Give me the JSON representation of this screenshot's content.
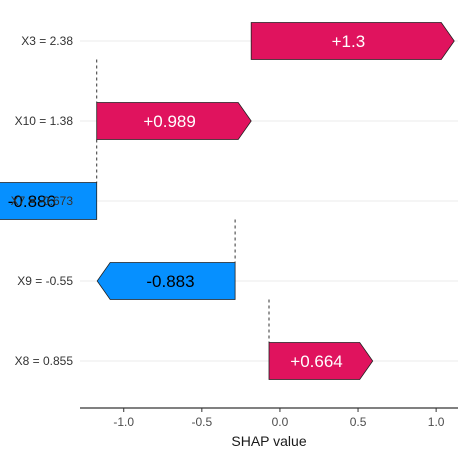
{
  "chart_data": {
    "type": "waterfall",
    "xlabel": "SHAP value",
    "xlim": [
      -1.28,
      1.14
    ],
    "x_ticks": [
      {
        "value": -1.0,
        "label": "-1.0"
      },
      {
        "value": -0.5,
        "label": "-0.5"
      },
      {
        "value": 0.0,
        "label": "0.0"
      },
      {
        "value": 0.5,
        "label": "0.5"
      },
      {
        "value": 1.0,
        "label": "1.0"
      }
    ],
    "grid": true,
    "colors": {
      "positive": "#e0135e",
      "negative": "#0690ff",
      "gridline": "#ebebeb"
    },
    "features": [
      {
        "name": "X3 = 2.38",
        "start": -0.184,
        "value": 1.3,
        "label": "+1.3",
        "label_color": "#ffffff"
      },
      {
        "name": "X10 = 1.38",
        "start": -1.173,
        "value": 0.989,
        "label": "+0.989",
        "label_color": "#ffffff"
      },
      {
        "name": "X7 = -0.673",
        "start": -1.173,
        "value": -0.886,
        "label": "-0.886",
        "label_color": "#000000"
      },
      {
        "name": "X9 = -0.55",
        "start": -0.287,
        "value": -0.883,
        "label": "-0.883",
        "label_color": "#000000"
      },
      {
        "name": "X8 = 0.855",
        "start": -0.07,
        "value": 0.664,
        "label": "+0.664",
        "label_color": "#ffffff"
      }
    ]
  }
}
